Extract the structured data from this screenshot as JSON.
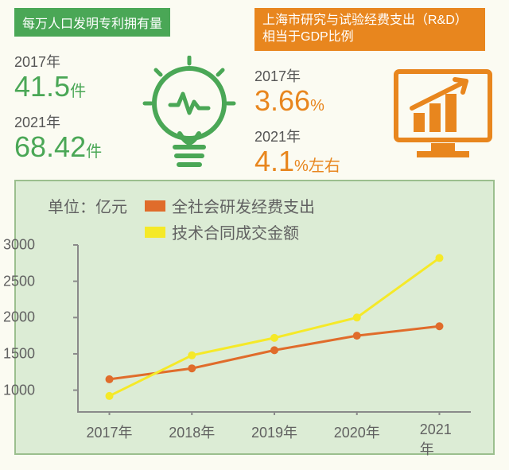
{
  "left": {
    "badge": "每万人口发明专利拥有量",
    "stat1_year": "2017年",
    "stat1_val": "41.5",
    "stat1_unit": "件",
    "stat2_year": "2021年",
    "stat2_val": "68.42",
    "stat2_unit": "件",
    "color": "#4aa756"
  },
  "right": {
    "badge": "上海市研究与试验经费支出（R&D）相当于GDP比例",
    "stat1_year": "2017年",
    "stat1_val": "3.66",
    "stat1_unit": "%",
    "stat2_year": "2021年",
    "stat2_val": "4.1",
    "stat2_unit": "%左右",
    "color": "#e8861e"
  },
  "chart": {
    "unit_label": "单位：亿元",
    "series": [
      {
        "name": "全社会研发经费支出",
        "color": "#e06c2b",
        "values": [
          1150,
          1300,
          1550,
          1750,
          1880
        ],
        "marker_r": 5
      },
      {
        "name": "技术合同成交金额",
        "color": "#f5e928",
        "values": [
          920,
          1480,
          1720,
          2000,
          2820
        ],
        "marker_r": 5
      }
    ],
    "categories": [
      "2017年",
      "2018年",
      "2019年",
      "2020年",
      "2021年"
    ],
    "y_ticks": [
      1000,
      1500,
      2000,
      2500,
      3000
    ],
    "y_min": 700,
    "y_max": 3000,
    "axis_color": "#8a8a8a",
    "tick_fontsize": 18,
    "line_width": 3,
    "background": "#dcecd5",
    "border_color": "#9bbf8e"
  }
}
